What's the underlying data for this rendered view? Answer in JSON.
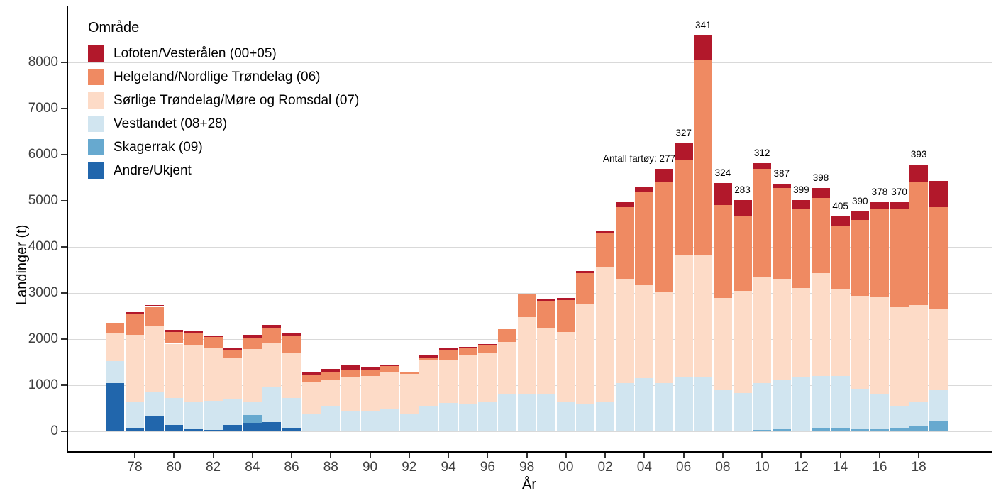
{
  "chart_data": {
    "type": "bar",
    "stacked": true,
    "legend_title": "Område",
    "xlabel": "År",
    "ylabel": "Landinger (t)",
    "ylim": [
      0,
      8600
    ],
    "yticks": [
      0,
      1000,
      2000,
      3000,
      4000,
      5000,
      6000,
      7000,
      8000
    ],
    "grid": "horizontal-major",
    "legend_position": "top-left-inside",
    "years": [
      1977,
      1978,
      1979,
      1980,
      1981,
      1982,
      1983,
      1984,
      1985,
      1986,
      1987,
      1988,
      1989,
      1990,
      1991,
      1992,
      1993,
      1994,
      1995,
      1996,
      1997,
      1998,
      1999,
      2000,
      2001,
      2002,
      2003,
      2004,
      2005,
      2006,
      2007,
      2008,
      2009,
      2010,
      2011,
      2012,
      2013,
      2014,
      2015,
      2016,
      2017,
      2018,
      2019
    ],
    "xticks": [
      {
        "year": 1978,
        "label": "78"
      },
      {
        "year": 1980,
        "label": "80"
      },
      {
        "year": 1982,
        "label": "82"
      },
      {
        "year": 1984,
        "label": "84"
      },
      {
        "year": 1986,
        "label": "86"
      },
      {
        "year": 1988,
        "label": "88"
      },
      {
        "year": 1990,
        "label": "90"
      },
      {
        "year": 1992,
        "label": "92"
      },
      {
        "year": 1994,
        "label": "94"
      },
      {
        "year": 1996,
        "label": "96"
      },
      {
        "year": 1998,
        "label": "98"
      },
      {
        "year": 2000,
        "label": "00"
      },
      {
        "year": 2002,
        "label": "02"
      },
      {
        "year": 2004,
        "label": "04"
      },
      {
        "year": 2006,
        "label": "06"
      },
      {
        "year": 2008,
        "label": "08"
      },
      {
        "year": 2010,
        "label": "10"
      },
      {
        "year": 2012,
        "label": "12"
      },
      {
        "year": 2014,
        "label": "14"
      },
      {
        "year": 2016,
        "label": "16"
      },
      {
        "year": 2018,
        "label": "18"
      }
    ],
    "series": [
      {
        "name": "Lofoten/Vesterålen (00+05)",
        "color": "#b2182b",
        "values": [
          0,
          30,
          35,
          40,
          40,
          40,
          35,
          70,
          60,
          70,
          65,
          75,
          90,
          50,
          30,
          30,
          35,
          35,
          25,
          20,
          0,
          0,
          50,
          50,
          50,
          60,
          105,
          90,
          280,
          350,
          540,
          470,
          330,
          120,
          100,
          205,
          215,
          190,
          195,
          140,
          145,
          380,
          565
        ]
      },
      {
        "name": "Helgeland/Nordlige Trøndelag (06)",
        "color": "#ef8a62",
        "values": [
          230,
          470,
          425,
          260,
          265,
          230,
          170,
          230,
          325,
          370,
          165,
          170,
          165,
          145,
          120,
          25,
          45,
          215,
          155,
          160,
          280,
          515,
          580,
          690,
          655,
          745,
          1560,
          2025,
          2390,
          2075,
          4205,
          2025,
          1630,
          2340,
          1965,
          1700,
          1640,
          1385,
          1640,
          1910,
          2125,
          2665,
          2220
        ]
      },
      {
        "name": "Sørlige Trøndelag/Møre og Romsdal (07)",
        "color": "#fddbc7",
        "values": [
          600,
          1460,
          1410,
          1175,
          1245,
          1145,
          900,
          1145,
          960,
          965,
          685,
          550,
          730,
          760,
          800,
          860,
          1005,
          930,
          1065,
          1075,
          1140,
          1665,
          1420,
          1530,
          2165,
          2920,
          2255,
          2015,
          1980,
          2650,
          2665,
          2000,
          2225,
          2300,
          2180,
          1935,
          2220,
          1885,
          2025,
          2115,
          2140,
          2115,
          1755
        ]
      },
      {
        "name": "Vestlandet (08+28)",
        "color": "#d1e5f0",
        "values": [
          490,
          555,
          540,
          580,
          580,
          635,
          545,
          290,
          770,
          650,
          385,
          540,
          450,
          435,
          490,
          385,
          555,
          615,
          590,
          640,
          795,
          810,
          810,
          630,
          605,
          630,
          1050,
          1155,
          1050,
          1170,
          1170,
          890,
          805,
          1020,
          1090,
          1160,
          1140,
          1130,
          870,
          770,
          480,
          520,
          655
        ]
      },
      {
        "name": "Skagerrak (09)",
        "color": "#67a9cf",
        "values": [
          0,
          0,
          0,
          0,
          0,
          0,
          0,
          170,
          0,
          0,
          0,
          0,
          0,
          0,
          0,
          0,
          0,
          0,
          0,
          0,
          0,
          0,
          0,
          0,
          0,
          0,
          0,
          0,
          0,
          0,
          0,
          0,
          20,
          30,
          40,
          20,
          65,
          65,
          45,
          40,
          75,
          110,
          230
        ]
      },
      {
        "name": "Andre/Ukjent",
        "color": "#2166ac",
        "values": [
          1040,
          75,
          325,
          145,
          50,
          30,
          145,
          180,
          195,
          70,
          0,
          15,
          0,
          0,
          0,
          0,
          0,
          0,
          0,
          0,
          0,
          0,
          0,
          0,
          0,
          0,
          0,
          0,
          0,
          0,
          0,
          0,
          0,
          0,
          0,
          0,
          0,
          0,
          0,
          0,
          0,
          0,
          0
        ]
      }
    ],
    "annotations": {
      "prefix": "Antall fartøy:",
      "items": [
        {
          "year": 2005,
          "label": "277",
          "with_prefix": true
        },
        {
          "year": 2006,
          "label": "327"
        },
        {
          "year": 2007,
          "label": "341"
        },
        {
          "year": 2008,
          "label": "324"
        },
        {
          "year": 2009,
          "label": "283"
        },
        {
          "year": 2010,
          "label": "312"
        },
        {
          "year": 2011,
          "label": "387"
        },
        {
          "year": 2012,
          "label": "399"
        },
        {
          "year": 2013,
          "label": "398"
        },
        {
          "year": 2014,
          "label": "405"
        },
        {
          "year": 2015,
          "label": "390"
        },
        {
          "year": 2016,
          "label": "378"
        },
        {
          "year": 2017,
          "label": "370"
        },
        {
          "year": 2018,
          "label": "393"
        }
      ]
    }
  }
}
